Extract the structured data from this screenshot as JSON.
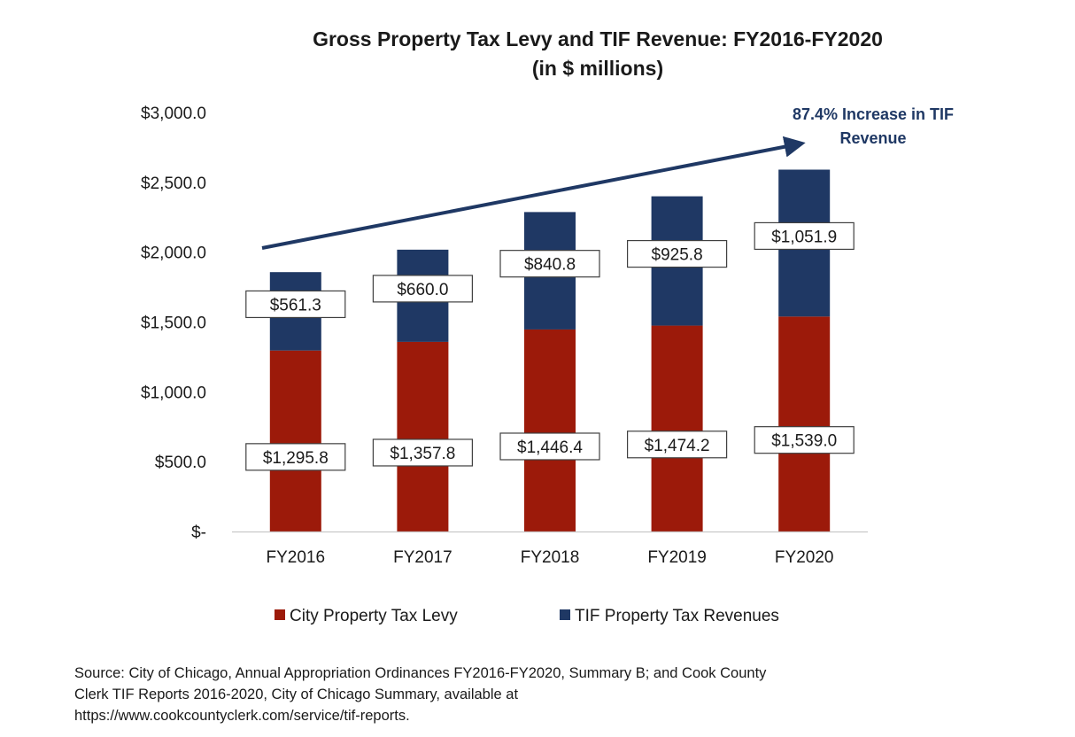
{
  "chart_data": {
    "type": "bar",
    "stacked": true,
    "title": "Gross Property Tax Levy and TIF Revenue: FY2016-FY2020",
    "subtitle": "(in $ millions)",
    "categories": [
      "FY2016",
      "FY2017",
      "FY2018",
      "FY2019",
      "FY2020"
    ],
    "series": [
      {
        "name": "City Property Tax Levy",
        "color": "#9c1a0a",
        "values": [
          1295.8,
          1357.8,
          1446.4,
          1474.2,
          1539.0
        ],
        "labels": [
          "$1,295.8",
          "$1,357.8",
          "$1,446.4",
          "$1,474.2",
          "$1,539.0"
        ]
      },
      {
        "name": "TIF Property Tax Revenues",
        "color": "#1f3864",
        "values": [
          561.3,
          660.0,
          840.8,
          925.8,
          1051.9
        ],
        "labels": [
          "$561.3",
          "$660.0",
          "$840.8",
          "$925.8",
          "$1,051.9"
        ]
      }
    ],
    "ylim": [
      0,
      3000
    ],
    "yticks": [
      0,
      500,
      1000,
      1500,
      2000,
      2500,
      3000
    ],
    "ytick_labels": [
      "$-",
      "$500.0",
      "$1,000.0",
      "$1,500.0",
      "$2,000.0",
      "$2,500.0",
      "$3,000.0"
    ],
    "xlabel": "",
    "ylabel": "",
    "grid": false,
    "legend_position": "bottom",
    "annotation": {
      "text_line1": "87.4% Increase in TIF",
      "text_line2": "Revenue",
      "color": "#1f3864"
    }
  },
  "source": {
    "line1": "Source: City of Chicago, Annual Appropriation Ordinances FY2016-FY2020, Summary B; and Cook County",
    "line2": "Clerk TIF Reports 2016-2020, City of Chicago Summary, available at",
    "line3": "https://www.cookcountyclerk.com/service/tif-reports."
  }
}
